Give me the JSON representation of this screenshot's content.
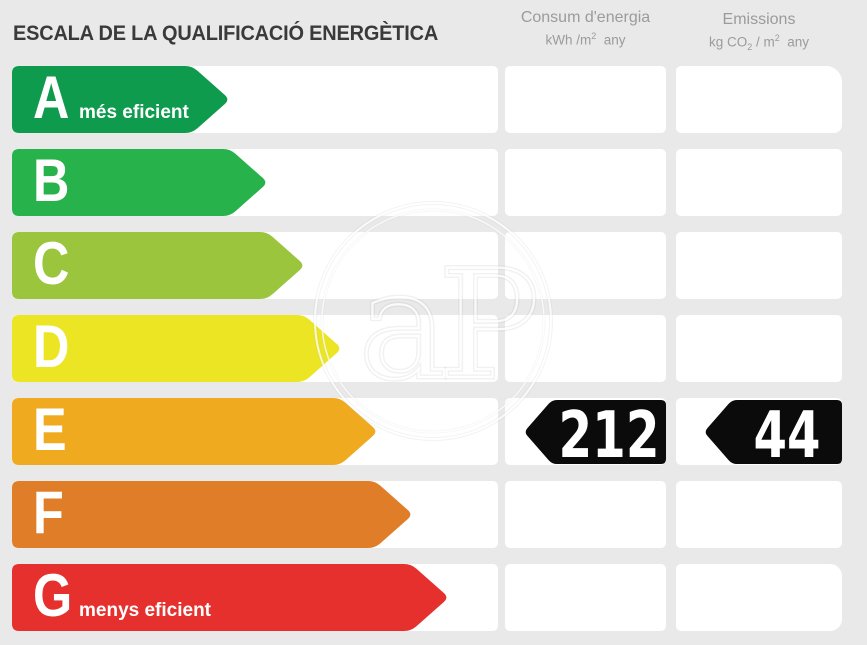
{
  "title": "ESCALA DE LA QUALIFICACIÓ ENERGÈTICA",
  "columns": {
    "energy": {
      "label": "Consum d'energia",
      "unit_pre": "kWh /m",
      "unit_sup": "2",
      "unit_post": "  any"
    },
    "emissions": {
      "label": "Emissions",
      "unit_pre": "kg CO",
      "unit_sub": "2",
      "unit_mid": " / m",
      "unit_sup": "2",
      "unit_post": "  any"
    }
  },
  "scale": [
    {
      "grade": "A",
      "note": "més eficient",
      "color": "#0f9b4e",
      "bar_end": 230
    },
    {
      "grade": "B",
      "note": "",
      "color": "#28b24c",
      "bar_end": 268
    },
    {
      "grade": "C",
      "note": "",
      "color": "#9bc53d",
      "bar_end": 305
    },
    {
      "grade": "D",
      "note": "",
      "color": "#ebe524",
      "bar_end": 342
    },
    {
      "grade": "E",
      "note": "",
      "color": "#efaa1f",
      "bar_end": 378
    },
    {
      "grade": "F",
      "note": "",
      "color": "#e07d28",
      "bar_end": 413
    },
    {
      "grade": "G",
      "note": "menys eficient",
      "color": "#e6302d",
      "bar_end": 449
    }
  ],
  "result": {
    "grade": "E",
    "energy_value": "212",
    "emissions_value": "44",
    "badge_color": "#0b0b0b",
    "value_color": "#ffffff"
  },
  "watermark": {
    "text": "aP"
  },
  "colors": {
    "background": "#e8e9e8",
    "cell": "#ffffff",
    "title_text": "#3a3a3a",
    "header_text": "#9b9b9b"
  },
  "chart_data": {
    "type": "bar",
    "title": "ESCALA DE LA QUALIFICACIÓ ENERGÈTICA",
    "categories": [
      "A",
      "B",
      "C",
      "D",
      "E",
      "F",
      "G"
    ],
    "category_colors": [
      "#0f9b4e",
      "#28b24c",
      "#9bc53d",
      "#ebe524",
      "#efaa1f",
      "#e07d28",
      "#e6302d"
    ],
    "annotations": [
      "A = més eficient",
      "G = menys eficient"
    ],
    "rating": "E",
    "series": [
      {
        "name": "Consum d'energia (kWh/m2 any)",
        "values": [
          null,
          null,
          null,
          null,
          212,
          null,
          null
        ]
      },
      {
        "name": "Emissions (kg CO2/m2 any)",
        "values": [
          null,
          null,
          null,
          null,
          44,
          null,
          null
        ]
      }
    ],
    "legend_position": "top",
    "grid": false
  }
}
